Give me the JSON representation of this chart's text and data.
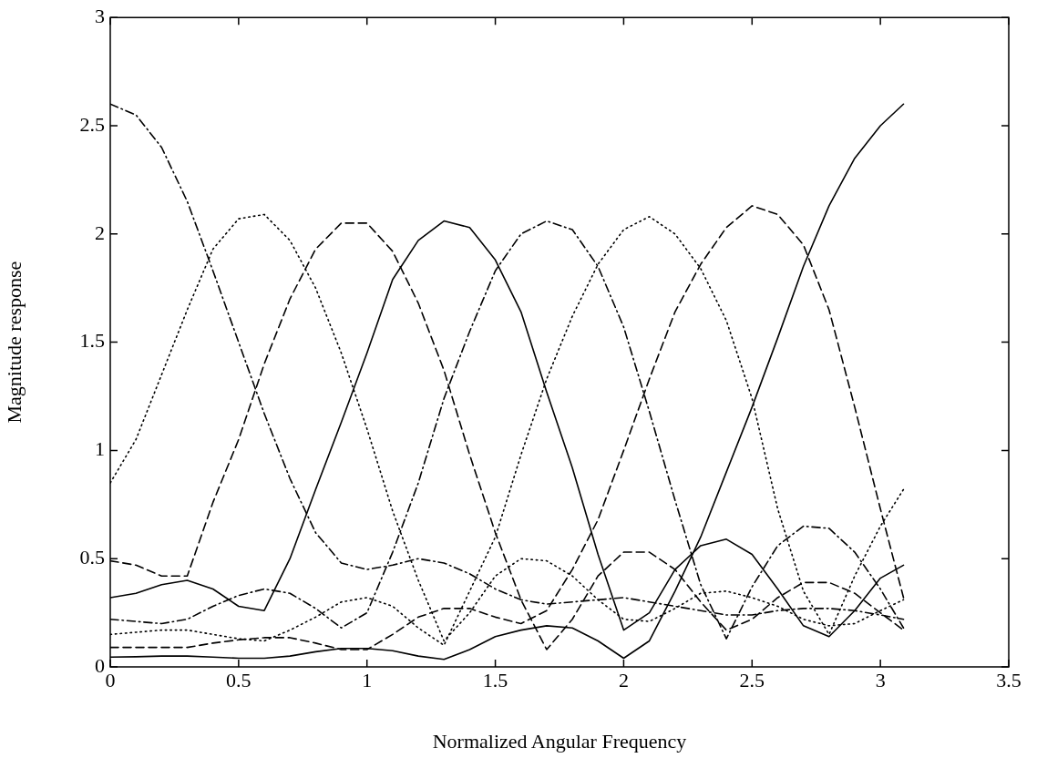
{
  "chart_data": {
    "type": "line",
    "xlabel": "Normalized Angular Frequency",
    "ylabel": "Magnitude response",
    "x": [
      0,
      0.1,
      0.2,
      0.3,
      0.4,
      0.5,
      0.6,
      0.7,
      0.8,
      0.9,
      1.0,
      1.1,
      1.2,
      1.3,
      1.4,
      1.5,
      1.6,
      1.7,
      1.8,
      1.9,
      2.0,
      2.1,
      2.2,
      2.3,
      2.4,
      2.5,
      2.6,
      2.7,
      2.8,
      2.9,
      3.0,
      3.09
    ],
    "xlim": [
      0,
      3.5
    ],
    "xticks": [
      0,
      0.5,
      1,
      1.5,
      2,
      2.5,
      3,
      3.5
    ],
    "ylim": [
      0,
      3
    ],
    "yticks": [
      0,
      0.5,
      1,
      1.5,
      2,
      2.5,
      3
    ],
    "grid": false,
    "legend": false,
    "marker": "none",
    "series": [
      {
        "color": "#000000",
        "line_style": "dashdot",
        "values": [
          2.6,
          2.55,
          2.4,
          2.15,
          1.83,
          1.5,
          1.17,
          0.87,
          0.62,
          0.48,
          0.45,
          0.47,
          0.5,
          0.48,
          0.43,
          0.36,
          0.31,
          0.29,
          0.3,
          0.31,
          0.32,
          0.3,
          0.28,
          0.26,
          0.24,
          0.24,
          0.26,
          0.27,
          0.27,
          0.26,
          0.24,
          0.22
        ]
      },
      {
        "color": "#000000",
        "line_style": "dotted",
        "values": [
          0.85,
          1.05,
          1.35,
          1.65,
          1.93,
          2.07,
          2.09,
          1.97,
          1.75,
          1.45,
          1.1,
          0.72,
          0.4,
          0.12,
          0.25,
          0.42,
          0.5,
          0.49,
          0.42,
          0.31,
          0.22,
          0.21,
          0.27,
          0.34,
          0.35,
          0.32,
          0.28,
          0.22,
          0.19,
          0.2,
          0.26,
          0.31
        ]
      },
      {
        "color": "#000000",
        "line_style": "dashed",
        "values": [
          0.49,
          0.47,
          0.42,
          0.42,
          0.76,
          1.05,
          1.4,
          1.7,
          1.93,
          2.05,
          2.05,
          1.92,
          1.68,
          1.37,
          0.98,
          0.62,
          0.31,
          0.08,
          0.22,
          0.42,
          0.53,
          0.53,
          0.45,
          0.3,
          0.17,
          0.22,
          0.32,
          0.39,
          0.39,
          0.34,
          0.25,
          0.17
        ]
      },
      {
        "color": "#000000",
        "line_style": "solid",
        "values": [
          0.32,
          0.34,
          0.38,
          0.4,
          0.36,
          0.28,
          0.26,
          0.5,
          0.82,
          1.13,
          1.45,
          1.79,
          1.97,
          2.06,
          2.03,
          1.88,
          1.64,
          1.27,
          0.92,
          0.52,
          0.17,
          0.25,
          0.45,
          0.56,
          0.59,
          0.52,
          0.36,
          0.19,
          0.14,
          0.26,
          0.41,
          0.47
        ]
      },
      {
        "color": "#000000",
        "line_style": "dashdot",
        "values": [
          0.22,
          0.21,
          0.2,
          0.22,
          0.28,
          0.33,
          0.36,
          0.34,
          0.27,
          0.18,
          0.25,
          0.53,
          0.85,
          1.24,
          1.55,
          1.83,
          2.0,
          2.06,
          2.02,
          1.85,
          1.57,
          1.18,
          0.77,
          0.38,
          0.13,
          0.37,
          0.56,
          0.65,
          0.64,
          0.53,
          0.36,
          0.18
        ]
      },
      {
        "color": "#000000",
        "line_style": "dotted",
        "values": [
          0.15,
          0.16,
          0.17,
          0.17,
          0.15,
          0.13,
          0.12,
          0.17,
          0.23,
          0.3,
          0.32,
          0.28,
          0.18,
          0.1,
          0.35,
          0.6,
          0.98,
          1.33,
          1.62,
          1.86,
          2.02,
          2.08,
          2.0,
          1.84,
          1.6,
          1.24,
          0.73,
          0.35,
          0.15,
          0.42,
          0.65,
          0.82
        ]
      },
      {
        "color": "#000000",
        "line_style": "dashed",
        "values": [
          0.09,
          0.09,
          0.09,
          0.09,
          0.11,
          0.125,
          0.135,
          0.135,
          0.11,
          0.08,
          0.08,
          0.15,
          0.23,
          0.27,
          0.27,
          0.23,
          0.2,
          0.26,
          0.45,
          0.68,
          1.0,
          1.33,
          1.64,
          1.86,
          2.03,
          2.13,
          2.09,
          1.95,
          1.65,
          1.2,
          0.73,
          0.32
        ]
      },
      {
        "color": "#000000",
        "line_style": "solid",
        "values": [
          0.045,
          0.047,
          0.05,
          0.05,
          0.045,
          0.04,
          0.04,
          0.05,
          0.07,
          0.085,
          0.085,
          0.075,
          0.05,
          0.035,
          0.08,
          0.14,
          0.17,
          0.19,
          0.18,
          0.12,
          0.04,
          0.12,
          0.35,
          0.6,
          0.9,
          1.2,
          1.52,
          1.85,
          2.13,
          2.35,
          2.5,
          2.6
        ]
      }
    ]
  }
}
